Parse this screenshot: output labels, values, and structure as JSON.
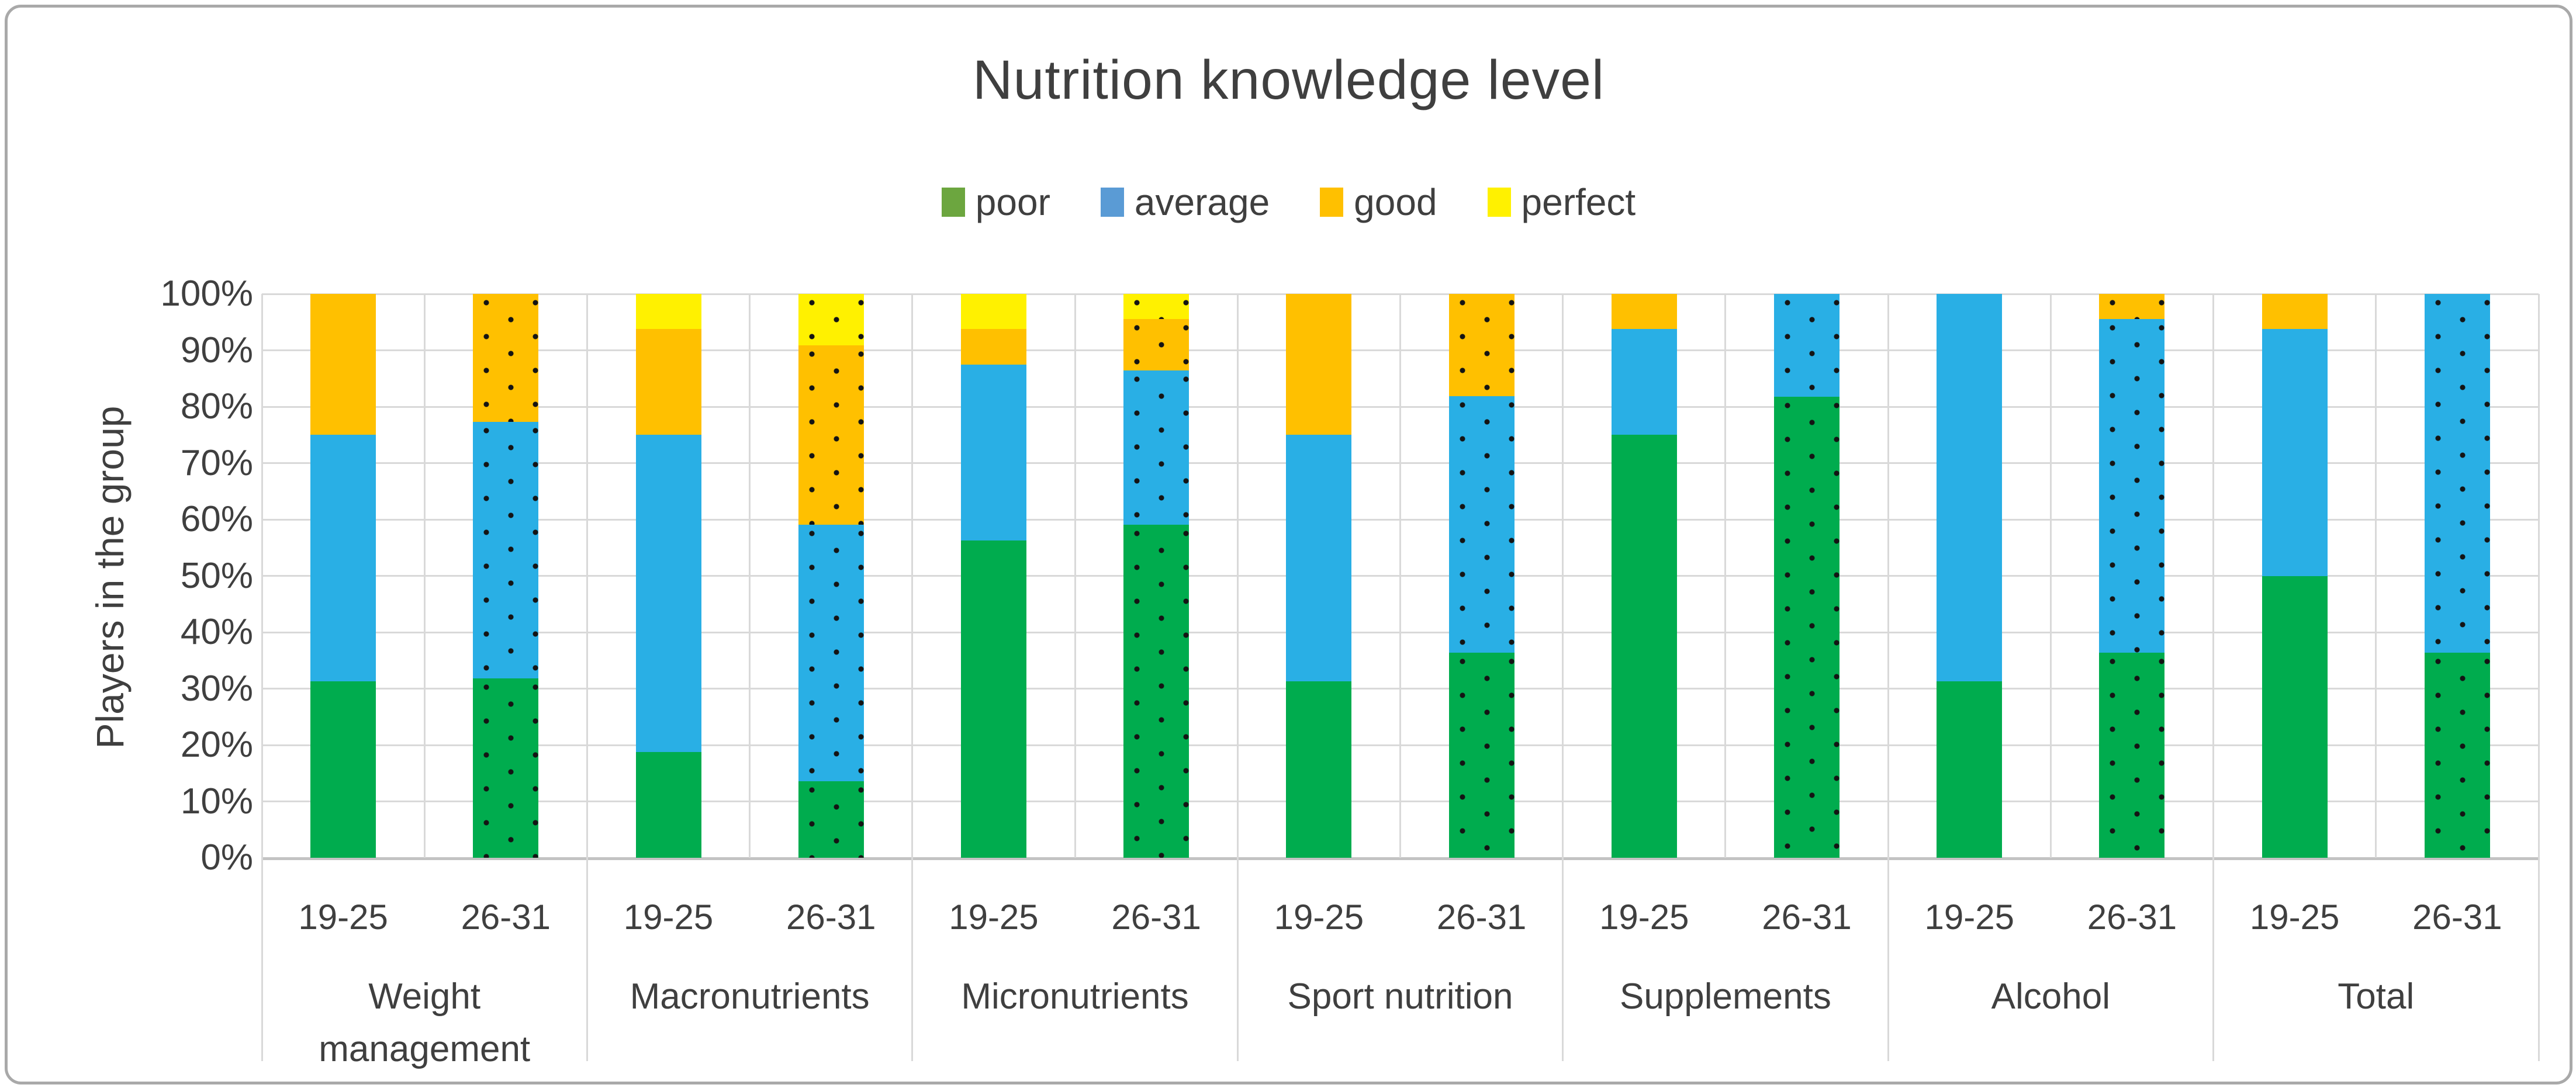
{
  "title": "Nutrition knowledge level",
  "legend": [
    {
      "label": "poor",
      "swatch_color": "#6CA63F"
    },
    {
      "label": "average",
      "swatch_color": "#5A9BD5"
    },
    {
      "label": "good",
      "swatch_color": "#FFC000"
    },
    {
      "label": "perfect",
      "swatch_color": "#FFF100"
    }
  ],
  "chart_data": {
    "type": "bar",
    "stacked": true,
    "percent_stacked": true,
    "title": "Nutrition knowledge level",
    "ylabel": "Players in the group",
    "xlabel": "",
    "ylim": [
      0,
      100
    ],
    "grid": true,
    "legend_position": "top",
    "y_ticks": [
      "0%",
      "10%",
      "20%",
      "30%",
      "40%",
      "50%",
      "60%",
      "70%",
      "80%",
      "90%",
      "100%"
    ],
    "series_names": [
      "poor",
      "average",
      "good",
      "perfect"
    ],
    "bar_colors": {
      "poor": "#00AC4E",
      "average": "#29AFE5",
      "good": "#FFC000",
      "perfect": "#FFF100"
    },
    "dot_pattern_color": "#141414",
    "age_groups": [
      "19-25",
      "26-31"
    ],
    "groups": [
      {
        "category": "Weight management",
        "label_lines": [
          "Weight",
          "management"
        ],
        "bars": [
          {
            "age": "19-25",
            "dotted": false,
            "segments": [
              31.25,
              43.75,
              25.0,
              0
            ]
          },
          {
            "age": "26-31",
            "dotted": true,
            "segments": [
              31.8,
              45.5,
              22.7,
              0
            ]
          }
        ]
      },
      {
        "category": "Macronutrients",
        "label_lines": [
          "Macronutrients"
        ],
        "bars": [
          {
            "age": "19-25",
            "dotted": false,
            "segments": [
              18.75,
              56.25,
              18.75,
              6.25
            ]
          },
          {
            "age": "26-31",
            "dotted": true,
            "segments": [
              13.6,
              45.5,
              31.8,
              9.1
            ]
          }
        ]
      },
      {
        "category": "Micronutrients",
        "label_lines": [
          "Micronutrients"
        ],
        "bars": [
          {
            "age": "19-25",
            "dotted": false,
            "segments": [
              56.25,
              31.25,
              6.25,
              6.25
            ]
          },
          {
            "age": "26-31",
            "dotted": true,
            "segments": [
              59.1,
              27.3,
              9.1,
              4.5
            ]
          }
        ]
      },
      {
        "category": "Sport nutrition",
        "label_lines": [
          "Sport nutrition"
        ],
        "bars": [
          {
            "age": "19-25",
            "dotted": false,
            "segments": [
              31.25,
              43.75,
              25.0,
              0
            ]
          },
          {
            "age": "26-31",
            "dotted": true,
            "segments": [
              36.4,
              45.5,
              18.2,
              0
            ]
          }
        ]
      },
      {
        "category": "Supplements",
        "label_lines": [
          "Supplements"
        ],
        "bars": [
          {
            "age": "19-25",
            "dotted": false,
            "segments": [
              75.0,
              18.75,
              6.25,
              0
            ]
          },
          {
            "age": "26-31",
            "dotted": true,
            "segments": [
              81.8,
              18.2,
              0,
              0
            ]
          }
        ]
      },
      {
        "category": "Alcohol",
        "label_lines": [
          "Alcohol"
        ],
        "bars": [
          {
            "age": "19-25",
            "dotted": false,
            "segments": [
              31.25,
              68.75,
              0,
              0
            ]
          },
          {
            "age": "26-31",
            "dotted": true,
            "segments": [
              36.4,
              59.1,
              4.5,
              0
            ]
          }
        ]
      },
      {
        "category": "Total",
        "label_lines": [
          "Total"
        ],
        "bars": [
          {
            "age": "19-25",
            "dotted": false,
            "segments": [
              50.0,
              43.75,
              6.25,
              0
            ]
          },
          {
            "age": "26-31",
            "dotted": true,
            "segments": [
              36.4,
              63.6,
              0,
              0
            ]
          }
        ]
      }
    ]
  }
}
